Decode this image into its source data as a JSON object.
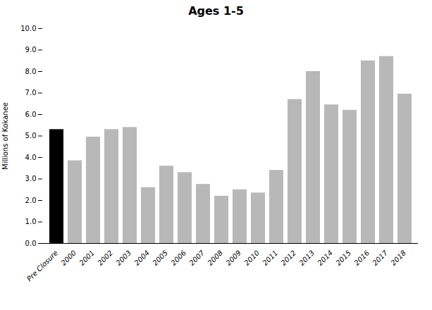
{
  "chart_data": {
    "type": "bar",
    "title": "Ages 1-5",
    "ylabel": "Millions of Kokanee",
    "categories": [
      "Pre Closure",
      "2000",
      "2001",
      "2002",
      "2003",
      "2004",
      "2005",
      "2006",
      "2007",
      "2008",
      "2009",
      "2010",
      "2011",
      "2012",
      "2013",
      "2014",
      "2015",
      "2016",
      "2017",
      "2018"
    ],
    "values": [
      5.3,
      3.85,
      4.95,
      5.3,
      5.4,
      2.6,
      3.6,
      3.3,
      2.75,
      2.2,
      2.5,
      2.35,
      3.4,
      6.7,
      8.0,
      6.45,
      6.2,
      8.5,
      8.7,
      6.95
    ],
    "colors": [
      "#000000",
      "#b8b8b8",
      "#b8b8b8",
      "#b8b8b8",
      "#b8b8b8",
      "#b8b8b8",
      "#b8b8b8",
      "#b8b8b8",
      "#b8b8b8",
      "#b8b8b8",
      "#b8b8b8",
      "#b8b8b8",
      "#b8b8b8",
      "#b8b8b8",
      "#b8b8b8",
      "#b8b8b8",
      "#b8b8b8",
      "#b8b8b8",
      "#b8b8b8",
      "#b8b8b8"
    ],
    "ylim": [
      0,
      10.0
    ],
    "yticks": [
      {
        "value": 0,
        "label": "0.0"
      },
      {
        "value": 1,
        "label": "1.0"
      },
      {
        "value": 2,
        "label": "2.0"
      },
      {
        "value": 3,
        "label": "3.0"
      },
      {
        "value": 4,
        "label": "4.0"
      },
      {
        "value": 5,
        "label": "5.0"
      },
      {
        "value": 6,
        "label": "6.0"
      },
      {
        "value": 7,
        "label": "7.0"
      },
      {
        "value": 8,
        "label": "8.0"
      },
      {
        "value": 9,
        "label": "9.0"
      },
      {
        "value": 10,
        "label": "10.0"
      }
    ]
  }
}
